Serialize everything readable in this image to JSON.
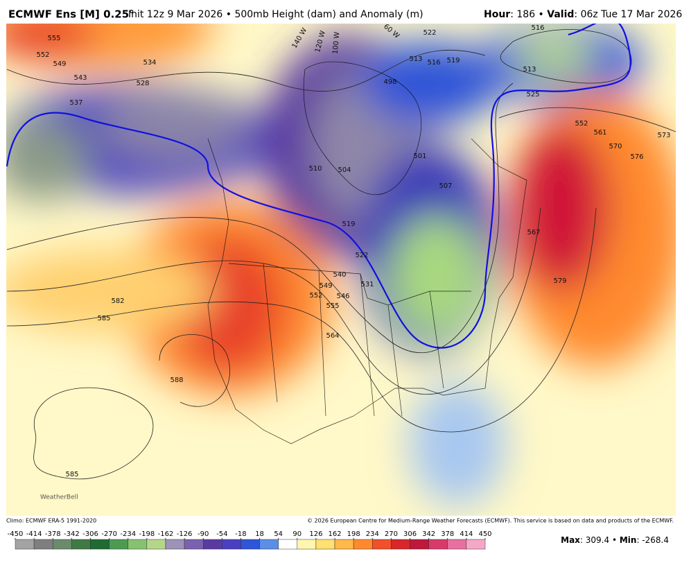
{
  "header": {
    "title": "ECMWF Ens [M] 0.25°",
    "subtitle": "Init 12z 9 Mar 2026 • 500mb Height (dam) and Anomaly (m)",
    "hour_label": "Hour",
    "hour_value": ": 186 • ",
    "valid_label": "Valid",
    "valid_value": ": 06z Tue 17 Mar 2026"
  },
  "map": {
    "contour_labels": [
      555,
      552,
      549,
      543,
      537,
      534,
      528,
      510,
      504,
      519,
      522,
      531,
      540,
      549,
      546,
      552,
      555,
      564,
      582,
      585,
      588,
      585,
      498,
      513,
      516,
      519,
      522,
      516,
      513,
      525,
      552,
      561,
      570,
      573,
      576,
      567,
      579,
      501,
      507
    ],
    "meridian_labels": [
      "140 W",
      "120 W",
      "100 W",
      "60 W"
    ],
    "logo": "WeatherBell"
  },
  "footer": {
    "climo": "Climo: ECMWF ERA-5 1991-2020",
    "copyright": "© 2026 European Centre for Medium-Range Weather Forecasts (ECMWF). This service is based on data and products of the ECMWF.",
    "max_label": "Max",
    "max_value": ": 309.4 • ",
    "min_label": "Min",
    "min_value": ": -268.4"
  },
  "colorbar": {
    "ticks": [
      -450,
      -414,
      -378,
      -342,
      -306,
      -270,
      -234,
      -198,
      -162,
      -126,
      -90,
      -54,
      -18,
      18,
      54,
      90,
      126,
      162,
      198,
      234,
      270,
      306,
      342,
      378,
      414,
      450
    ],
    "colors": [
      "#a3a3a3",
      "#7f7f7f",
      "#6c8a6c",
      "#3f7a45",
      "#1f6b33",
      "#4d9b52",
      "#86c270",
      "#b5d68a",
      "#9d93b8",
      "#7a62b0",
      "#5a3aa0",
      "#4a3fc0",
      "#2f55d8",
      "#5b8fe6",
      "#ffffff",
      "#fff6b0",
      "#ffe070",
      "#ffb84a",
      "#ff8a2e",
      "#f0502a",
      "#d8262a",
      "#c0183a",
      "#d83a6a",
      "#e870a0",
      "#f4a8c8"
    ]
  }
}
